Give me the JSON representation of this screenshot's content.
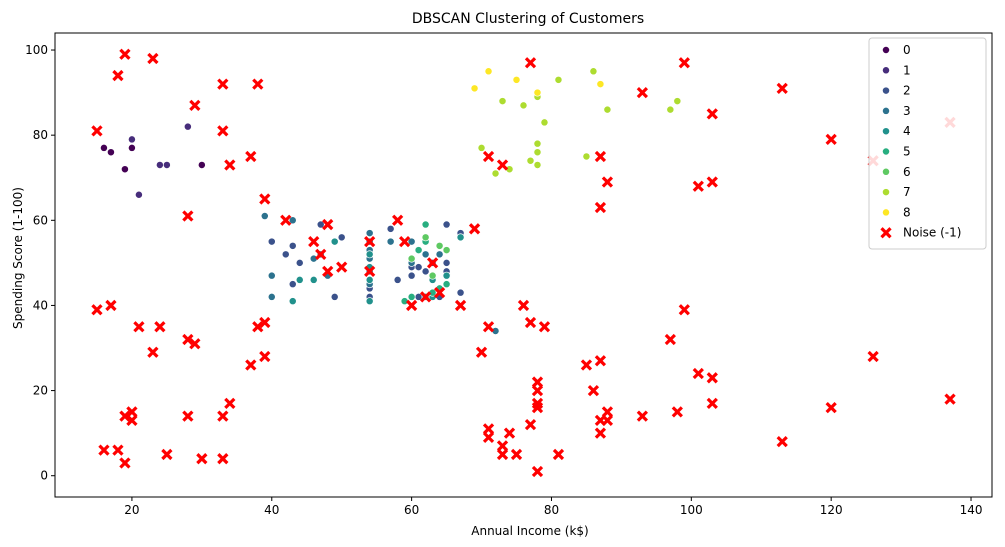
{
  "chart_data": {
    "type": "scatter",
    "title": "DBSCAN Clustering of Customers",
    "xlabel": "Annual Income (k$)",
    "ylabel": "Spending Score (1-100)",
    "xlim": [
      9,
      143
    ],
    "ylim": [
      -5,
      104
    ],
    "xticks": [
      20,
      40,
      60,
      80,
      100,
      120,
      140
    ],
    "yticks": [
      0,
      20,
      40,
      60,
      80,
      100
    ],
    "grid": false,
    "legend_position": "top-right",
    "series": [
      {
        "name": "0",
        "color": "#440154",
        "marker": "circle",
        "points": [
          [
            16,
            77
          ],
          [
            17,
            76
          ],
          [
            19,
            72
          ],
          [
            20,
            77
          ],
          [
            30,
            73
          ]
        ]
      },
      {
        "name": "1",
        "color": "#472d7b",
        "marker": "circle",
        "points": [
          [
            20,
            79
          ],
          [
            21,
            66
          ],
          [
            24,
            73
          ],
          [
            25,
            73
          ],
          [
            28,
            82
          ]
        ]
      },
      {
        "name": "2",
        "color": "#3b528b",
        "marker": "circle",
        "points": [
          [
            40,
            55
          ],
          [
            42,
            52
          ],
          [
            43,
            54
          ],
          [
            43,
            45
          ],
          [
            44,
            50
          ],
          [
            46,
            51
          ],
          [
            47,
            59
          ],
          [
            49,
            42
          ],
          [
            50,
            56
          ],
          [
            54,
            42
          ],
          [
            54,
            44
          ],
          [
            57,
            58
          ],
          [
            58,
            46
          ],
          [
            60,
            47
          ],
          [
            60,
            49
          ],
          [
            61,
            42
          ],
          [
            61,
            49
          ],
          [
            62,
            48
          ],
          [
            63,
            50
          ],
          [
            64,
            42
          ],
          [
            65,
            59
          ],
          [
            65,
            48
          ],
          [
            65,
            50
          ],
          [
            67,
            57
          ],
          [
            67,
            43
          ]
        ]
      },
      {
        "name": "3",
        "color": "#2c728e",
        "marker": "circle",
        "points": [
          [
            39,
            61
          ],
          [
            40,
            42
          ],
          [
            40,
            47
          ],
          [
            43,
            60
          ],
          [
            46,
            51
          ],
          [
            47,
            52
          ],
          [
            48,
            47
          ],
          [
            54,
            45
          ],
          [
            54,
            53
          ],
          [
            54,
            55
          ],
          [
            54,
            57
          ],
          [
            54,
            48
          ],
          [
            54,
            51
          ],
          [
            57,
            55
          ],
          [
            60,
            50
          ],
          [
            60,
            55
          ],
          [
            62,
            52
          ],
          [
            63,
            46
          ],
          [
            64,
            52
          ],
          [
            72,
            34
          ]
        ]
      },
      {
        "name": "4",
        "color": "#21918c",
        "marker": "circle",
        "points": [
          [
            43,
            41
          ],
          [
            44,
            46
          ],
          [
            46,
            46
          ],
          [
            49,
            55
          ],
          [
            54,
            41
          ],
          [
            54,
            46
          ],
          [
            54,
            49
          ],
          [
            54,
            52
          ],
          [
            60,
            42
          ],
          [
            62,
            42
          ],
          [
            63,
            42
          ],
          [
            63,
            46
          ],
          [
            65,
            47
          ],
          [
            67,
            56
          ]
        ]
      },
      {
        "name": "5",
        "color": "#28ae80",
        "marker": "circle",
        "points": [
          [
            59,
            41
          ],
          [
            60,
            42
          ],
          [
            61,
            53
          ],
          [
            62,
            55
          ],
          [
            62,
            59
          ],
          [
            63,
            43
          ],
          [
            64,
            44
          ],
          [
            65,
            45
          ]
        ]
      },
      {
        "name": "6",
        "color": "#5ec962",
        "marker": "circle",
        "points": [
          [
            60,
            51
          ],
          [
            62,
            56
          ],
          [
            63,
            47
          ],
          [
            64,
            54
          ],
          [
            65,
            53
          ]
        ]
      },
      {
        "name": "7",
        "color": "#addc30",
        "marker": "circle",
        "points": [
          [
            70,
            77
          ],
          [
            72,
            71
          ],
          [
            73,
            88
          ],
          [
            74,
            72
          ],
          [
            76,
            87
          ],
          [
            77,
            74
          ],
          [
            78,
            76
          ],
          [
            78,
            78
          ],
          [
            78,
            73
          ],
          [
            78,
            89
          ],
          [
            79,
            83
          ],
          [
            81,
            93
          ],
          [
            85,
            75
          ],
          [
            86,
            95
          ],
          [
            88,
            86
          ],
          [
            97,
            86
          ],
          [
            98,
            88
          ]
        ]
      },
      {
        "name": "8",
        "color": "#fde725",
        "marker": "circle",
        "points": [
          [
            69,
            91
          ],
          [
            71,
            95
          ],
          [
            75,
            93
          ],
          [
            78,
            90
          ],
          [
            87,
            92
          ]
        ]
      },
      {
        "name": "Noise (-1)",
        "color": "#ff0000",
        "marker": "x",
        "points": [
          [
            15,
            81
          ],
          [
            15,
            39
          ],
          [
            16,
            6
          ],
          [
            17,
            40
          ],
          [
            18,
            94
          ],
          [
            18,
            6
          ],
          [
            19,
            99
          ],
          [
            19,
            14
          ],
          [
            19,
            3
          ],
          [
            20,
            15
          ],
          [
            20,
            13
          ],
          [
            21,
            35
          ],
          [
            23,
            98
          ],
          [
            23,
            29
          ],
          [
            24,
            35
          ],
          [
            25,
            5
          ],
          [
            28,
            61
          ],
          [
            28,
            32
          ],
          [
            28,
            14
          ],
          [
            29,
            87
          ],
          [
            29,
            31
          ],
          [
            30,
            4
          ],
          [
            33,
            92
          ],
          [
            33,
            81
          ],
          [
            33,
            14
          ],
          [
            33,
            4
          ],
          [
            34,
            73
          ],
          [
            34,
            17
          ],
          [
            37,
            75
          ],
          [
            37,
            26
          ],
          [
            38,
            92
          ],
          [
            38,
            35
          ],
          [
            39,
            65
          ],
          [
            39,
            36
          ],
          [
            39,
            28
          ],
          [
            42,
            60
          ],
          [
            46,
            55
          ],
          [
            47,
            52
          ],
          [
            48,
            59
          ],
          [
            48,
            48
          ],
          [
            50,
            49
          ],
          [
            54,
            55
          ],
          [
            54,
            48
          ],
          [
            58,
            60
          ],
          [
            59,
            55
          ],
          [
            60,
            40
          ],
          [
            62,
            42
          ],
          [
            63,
            50
          ],
          [
            64,
            43
          ],
          [
            67,
            40
          ],
          [
            69,
            58
          ],
          [
            70,
            29
          ],
          [
            71,
            75
          ],
          [
            71,
            35
          ],
          [
            71,
            11
          ],
          [
            71,
            9
          ],
          [
            73,
            73
          ],
          [
            73,
            7
          ],
          [
            73,
            5
          ],
          [
            74,
            10
          ],
          [
            75,
            5
          ],
          [
            76,
            40
          ],
          [
            77,
            97
          ],
          [
            77,
            36
          ],
          [
            77,
            12
          ],
          [
            78,
            22
          ],
          [
            78,
            20
          ],
          [
            78,
            17
          ],
          [
            78,
            16
          ],
          [
            78,
            1
          ],
          [
            79,
            35
          ],
          [
            81,
            5
          ],
          [
            85,
            26
          ],
          [
            86,
            20
          ],
          [
            87,
            75
          ],
          [
            87,
            63
          ],
          [
            87,
            27
          ],
          [
            87,
            13
          ],
          [
            87,
            10
          ],
          [
            88,
            69
          ],
          [
            88,
            15
          ],
          [
            88,
            13
          ],
          [
            93,
            90
          ],
          [
            93,
            14
          ],
          [
            97,
            32
          ],
          [
            98,
            15
          ],
          [
            99,
            97
          ],
          [
            99,
            39
          ],
          [
            101,
            68
          ],
          [
            101,
            24
          ],
          [
            103,
            85
          ],
          [
            103,
            69
          ],
          [
            103,
            23
          ],
          [
            103,
            17
          ],
          [
            113,
            91
          ],
          [
            113,
            8
          ],
          [
            120,
            79
          ],
          [
            120,
            16
          ],
          [
            126,
            74
          ],
          [
            126,
            28
          ],
          [
            137,
            83
          ],
          [
            137,
            18
          ]
        ]
      }
    ]
  }
}
